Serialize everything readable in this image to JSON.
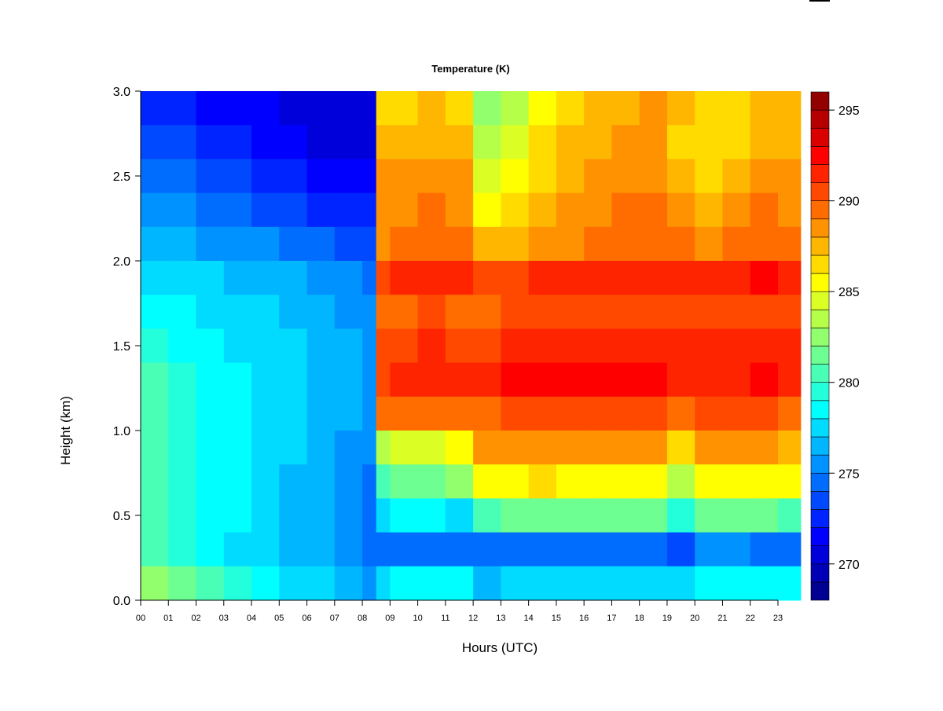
{
  "chart_data": {
    "type": "heatmap",
    "title": "Temperature (K)",
    "xlabel": "Hours (UTC)",
    "ylabel": "Height (km)",
    "xlim": [
      0,
      23.82
    ],
    "ylim": [
      0,
      3.0
    ],
    "x_ticks": [
      "00",
      "01",
      "02",
      "03",
      "04",
      "05",
      "06",
      "07",
      "08",
      "09",
      "10",
      "11",
      "12",
      "13",
      "14",
      "15",
      "16",
      "17",
      "18",
      "19",
      "20",
      "21",
      "22",
      "23"
    ],
    "y_ticks": [
      "0.0",
      "0.5",
      "1.0",
      "1.5",
      "2.0",
      "2.5",
      "3.0"
    ],
    "colorbar": {
      "range": [
        268,
        296
      ],
      "step": 1,
      "ticks": [
        "270",
        "275",
        "280",
        "285",
        "290",
        "295"
      ],
      "colormap": "jet"
    },
    "x_bin_edges": [
      0,
      1,
      2,
      3,
      4,
      5,
      6,
      7,
      8,
      8.5,
      9,
      10,
      11,
      12,
      13,
      14,
      15,
      16,
      17,
      18,
      19,
      20,
      21,
      22,
      23,
      23.82
    ],
    "height_bin_centers_km": [
      2.9,
      2.7,
      2.5,
      2.3,
      2.1,
      1.9,
      1.7,
      1.5,
      1.3,
      1.1,
      0.9,
      0.7,
      0.5,
      0.3,
      0.1
    ],
    "values": [
      [
        272,
        273,
        274,
        275,
        276,
        277,
        278,
        279,
        280,
        280,
        280,
        280,
        280,
        280,
        282
      ],
      [
        272,
        273,
        274,
        275,
        276,
        277,
        278,
        278,
        279,
        279,
        279,
        279,
        279,
        279,
        281
      ],
      [
        271,
        272,
        273,
        274,
        275,
        277,
        277,
        278,
        278,
        278,
        278,
        278,
        278,
        278,
        280
      ],
      [
        271,
        272,
        273,
        274,
        275,
        276,
        277,
        277,
        278,
        278,
        278,
        278,
        278,
        277,
        279
      ],
      [
        271,
        271,
        272,
        273,
        275,
        276,
        277,
        277,
        277,
        277,
        277,
        277,
        277,
        277,
        278
      ],
      [
        270,
        271,
        272,
        273,
        274,
        276,
        276,
        277,
        277,
        277,
        277,
        276,
        276,
        276,
        277
      ],
      [
        270,
        270,
        271,
        272,
        274,
        275,
        276,
        276,
        276,
        276,
        276,
        276,
        276,
        276,
        277
      ],
      [
        270,
        270,
        271,
        272,
        273,
        275,
        275,
        276,
        276,
        276,
        275,
        275,
        275,
        275,
        276
      ],
      [
        270,
        270,
        271,
        272,
        273,
        274,
        275,
        275,
        275,
        275,
        275,
        274,
        274,
        274,
        275
      ],
      [
        286,
        287,
        288,
        288,
        288,
        290,
        289,
        290,
        290,
        289,
        283,
        280,
        277,
        274,
        277
      ],
      [
        286,
        287,
        288,
        288,
        289,
        291,
        289,
        290,
        291,
        289,
        284,
        281,
        278,
        274,
        278
      ],
      [
        287,
        287,
        288,
        289,
        289,
        291,
        290,
        291,
        291,
        289,
        284,
        281,
        278,
        274,
        278
      ],
      [
        286,
        287,
        288,
        288,
        289,
        291,
        289,
        290,
        291,
        289,
        285,
        282,
        277,
        274,
        278
      ],
      [
        282,
        283,
        284,
        285,
        287,
        290,
        289,
        290,
        291,
        289,
        288,
        285,
        280,
        274,
        276
      ],
      [
        283,
        284,
        285,
        286,
        287,
        290,
        290,
        291,
        292,
        290,
        288,
        285,
        281,
        274,
        277
      ],
      [
        285,
        286,
        286,
        287,
        288,
        291,
        290,
        291,
        292,
        290,
        288,
        286,
        281,
        274,
        277
      ],
      [
        286,
        287,
        287,
        288,
        288,
        291,
        290,
        291,
        292,
        290,
        288,
        285,
        281,
        274,
        277
      ],
      [
        287,
        287,
        288,
        288,
        289,
        291,
        290,
        291,
        292,
        290,
        288,
        285,
        281,
        274,
        277
      ],
      [
        287,
        288,
        288,
        289,
        289,
        291,
        290,
        291,
        292,
        290,
        288,
        285,
        281,
        274,
        277
      ],
      [
        288,
        288,
        288,
        289,
        289,
        291,
        290,
        291,
        292,
        290,
        288,
        285,
        281,
        274,
        277
      ],
      [
        287,
        286,
        287,
        288,
        289,
        291,
        290,
        291,
        291,
        289,
        286,
        283,
        279,
        273,
        277
      ],
      [
        286,
        286,
        286,
        287,
        288,
        291,
        290,
        291,
        291,
        290,
        288,
        285,
        281,
        275,
        278
      ],
      [
        286,
        286,
        287,
        288,
        289,
        291,
        290,
        291,
        291,
        290,
        288,
        285,
        281,
        275,
        278
      ],
      [
        287,
        287,
        288,
        289,
        289,
        292,
        290,
        291,
        292,
        290,
        288,
        285,
        281,
        274,
        278
      ],
      [
        287,
        287,
        288,
        288,
        289,
        291,
        290,
        291,
        291,
        289,
        287,
        285,
        280,
        274,
        278
      ]
    ]
  }
}
